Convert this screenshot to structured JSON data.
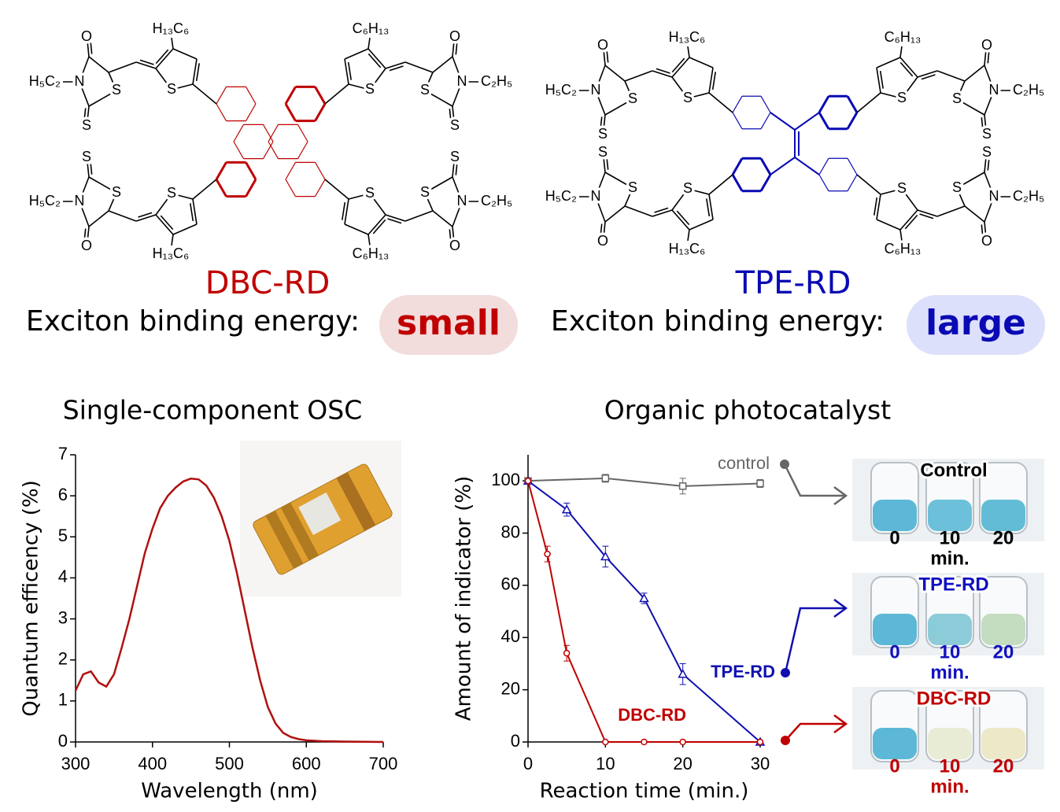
{
  "structures": {
    "labels": {
      "oxygen": "O",
      "sulfur": "S",
      "nitrogen": "N",
      "ethyl_left": "H₅C₂",
      "ethyl_right": "C₂H₅",
      "hexyl_left": "H₁₃C₆",
      "hexyl_right": "C₆H₁₃"
    },
    "molecules": [
      {
        "name": "DBC-RD",
        "color": "#c00000",
        "energy_label": "Exciton binding energy:",
        "energy": "small",
        "badge_color": "#f2dcdc"
      },
      {
        "name": "TPE-RD",
        "color": "#0a0ab4",
        "energy_label": "Exciton binding energy:",
        "energy": "large",
        "badge_color": "#dde0fb"
      }
    ]
  },
  "chart_data": [
    {
      "type": "line",
      "title": "Single-component OSC",
      "xlabel": "Wavelength (nm)",
      "ylabel": "Quantum efficency (%)",
      "x": [
        300,
        310,
        320,
        330,
        340,
        350,
        360,
        370,
        380,
        390,
        400,
        410,
        420,
        430,
        440,
        450,
        460,
        470,
        480,
        490,
        500,
        510,
        520,
        530,
        540,
        550,
        560,
        570,
        580,
        590,
        600,
        620,
        650,
        700
      ],
      "series": [
        {
          "color": "#b01010",
          "values": [
            1.25,
            1.65,
            1.72,
            1.45,
            1.35,
            1.65,
            2.3,
            3.0,
            3.8,
            4.6,
            5.2,
            5.7,
            6.0,
            6.2,
            6.35,
            6.42,
            6.4,
            6.25,
            5.95,
            5.5,
            4.9,
            4.1,
            3.2,
            2.3,
            1.5,
            0.85,
            0.45,
            0.22,
            0.12,
            0.07,
            0.04,
            0.02,
            0.01,
            0
          ]
        }
      ],
      "xlim": [
        300,
        700
      ],
      "ylim": [
        0,
        7
      ],
      "xticks": [
        300,
        400,
        500,
        600,
        700
      ],
      "yticks": [
        0,
        1,
        2,
        3,
        4,
        5,
        6,
        7
      ]
    },
    {
      "type": "line",
      "title": "Organic photocatalyst",
      "xlabel": "Reaction time (min.)",
      "ylabel": "Amount of indicator (%)",
      "series": [
        {
          "name": "control",
          "color": "#666666",
          "marker": "square",
          "x": [
            0,
            10,
            20,
            30
          ],
          "values": [
            100,
            101,
            98,
            99
          ],
          "errors": [
            0,
            1.5,
            3,
            1.5
          ]
        },
        {
          "name": "TPE-RD",
          "color": "#1010b0",
          "marker": "triangle",
          "x": [
            0,
            5,
            10,
            15,
            20,
            30
          ],
          "values": [
            100,
            89,
            71,
            55,
            26,
            0
          ],
          "errors": [
            0,
            2.5,
            4,
            2,
            4,
            0
          ]
        },
        {
          "name": "DBC-RD",
          "color": "#c00000",
          "marker": "circle",
          "x": [
            0,
            2.5,
            5,
            10,
            15,
            20,
            30
          ],
          "values": [
            100,
            72,
            34,
            0,
            0,
            0,
            0
          ],
          "errors": [
            0,
            3,
            3,
            0,
            0,
            0,
            0
          ]
        }
      ],
      "xlim": [
        0,
        30
      ],
      "ylim": [
        0,
        110
      ],
      "xticks": [
        0,
        10,
        20,
        30
      ],
      "yticks": [
        0,
        20,
        40,
        60,
        80,
        100
      ]
    }
  ],
  "vials": [
    {
      "title": "Control",
      "color": "#000000",
      "times": [
        "0",
        "10",
        "20"
      ],
      "unit": "min.",
      "liquid_colors": [
        "#5cb8d6",
        "#6cc0da",
        "#62bcd6"
      ]
    },
    {
      "title": "TPE-RD",
      "color": "#1010c0",
      "times": [
        "0",
        "10",
        "20"
      ],
      "unit": "min.",
      "liquid_colors": [
        "#5cb8d6",
        "#8ccbd8",
        "#c4dcc0"
      ]
    },
    {
      "title": "DBC-RD",
      "color": "#c00000",
      "times": [
        "0",
        "10",
        "20"
      ],
      "unit": "min.",
      "liquid_colors": [
        "#5cb8d6",
        "#e8ecd4",
        "#ece8c8"
      ]
    }
  ]
}
